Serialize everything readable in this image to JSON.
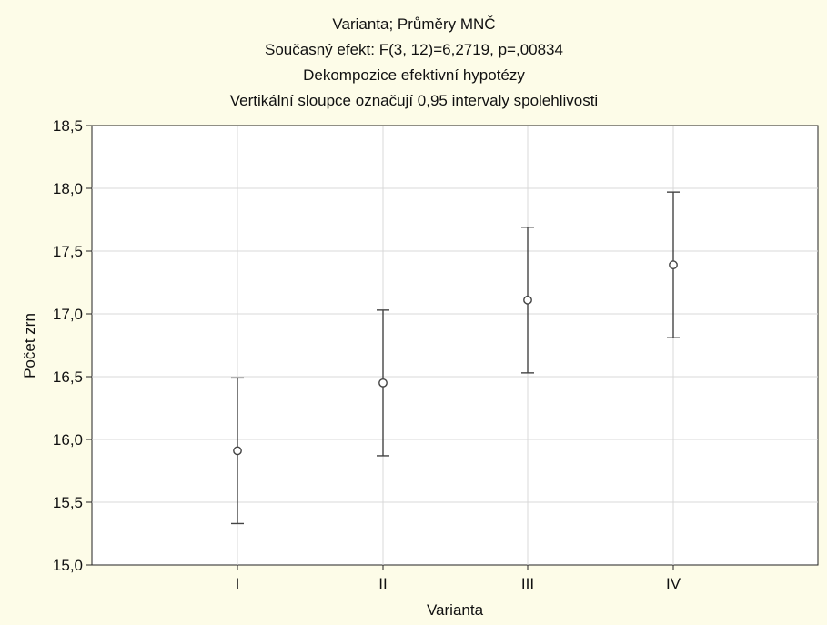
{
  "chart_data": {
    "type": "scatter",
    "title_lines": [
      "Varianta; Průměry MNČ",
      "Současný efekt: F(3, 12)=6,2719, p=,00834",
      "Dekompozice efektivní hypotézy",
      "Vertikální sloupce označují 0,95 intervaly spolehlivosti"
    ],
    "xlabel": "Varianta",
    "ylabel": "Počet zrn",
    "categories": [
      "I",
      "II",
      "III",
      "IV"
    ],
    "y_ticks": [
      "15,0",
      "15,5",
      "16,0",
      "16,5",
      "17,0",
      "17,5",
      "18,0",
      "18,5"
    ],
    "ylim": [
      15.0,
      18.5
    ],
    "grid": true,
    "series": [
      {
        "means": [
          15.91,
          16.45,
          17.11,
          17.39
        ],
        "ci_lower": [
          15.33,
          15.87,
          16.53,
          16.81
        ],
        "ci_upper": [
          16.49,
          17.03,
          17.69,
          17.97
        ]
      }
    ],
    "colors": {
      "background": "#fdfce8",
      "plot_area": "#ffffff",
      "grid": "#d9d9d9",
      "marks": "#444444"
    }
  }
}
